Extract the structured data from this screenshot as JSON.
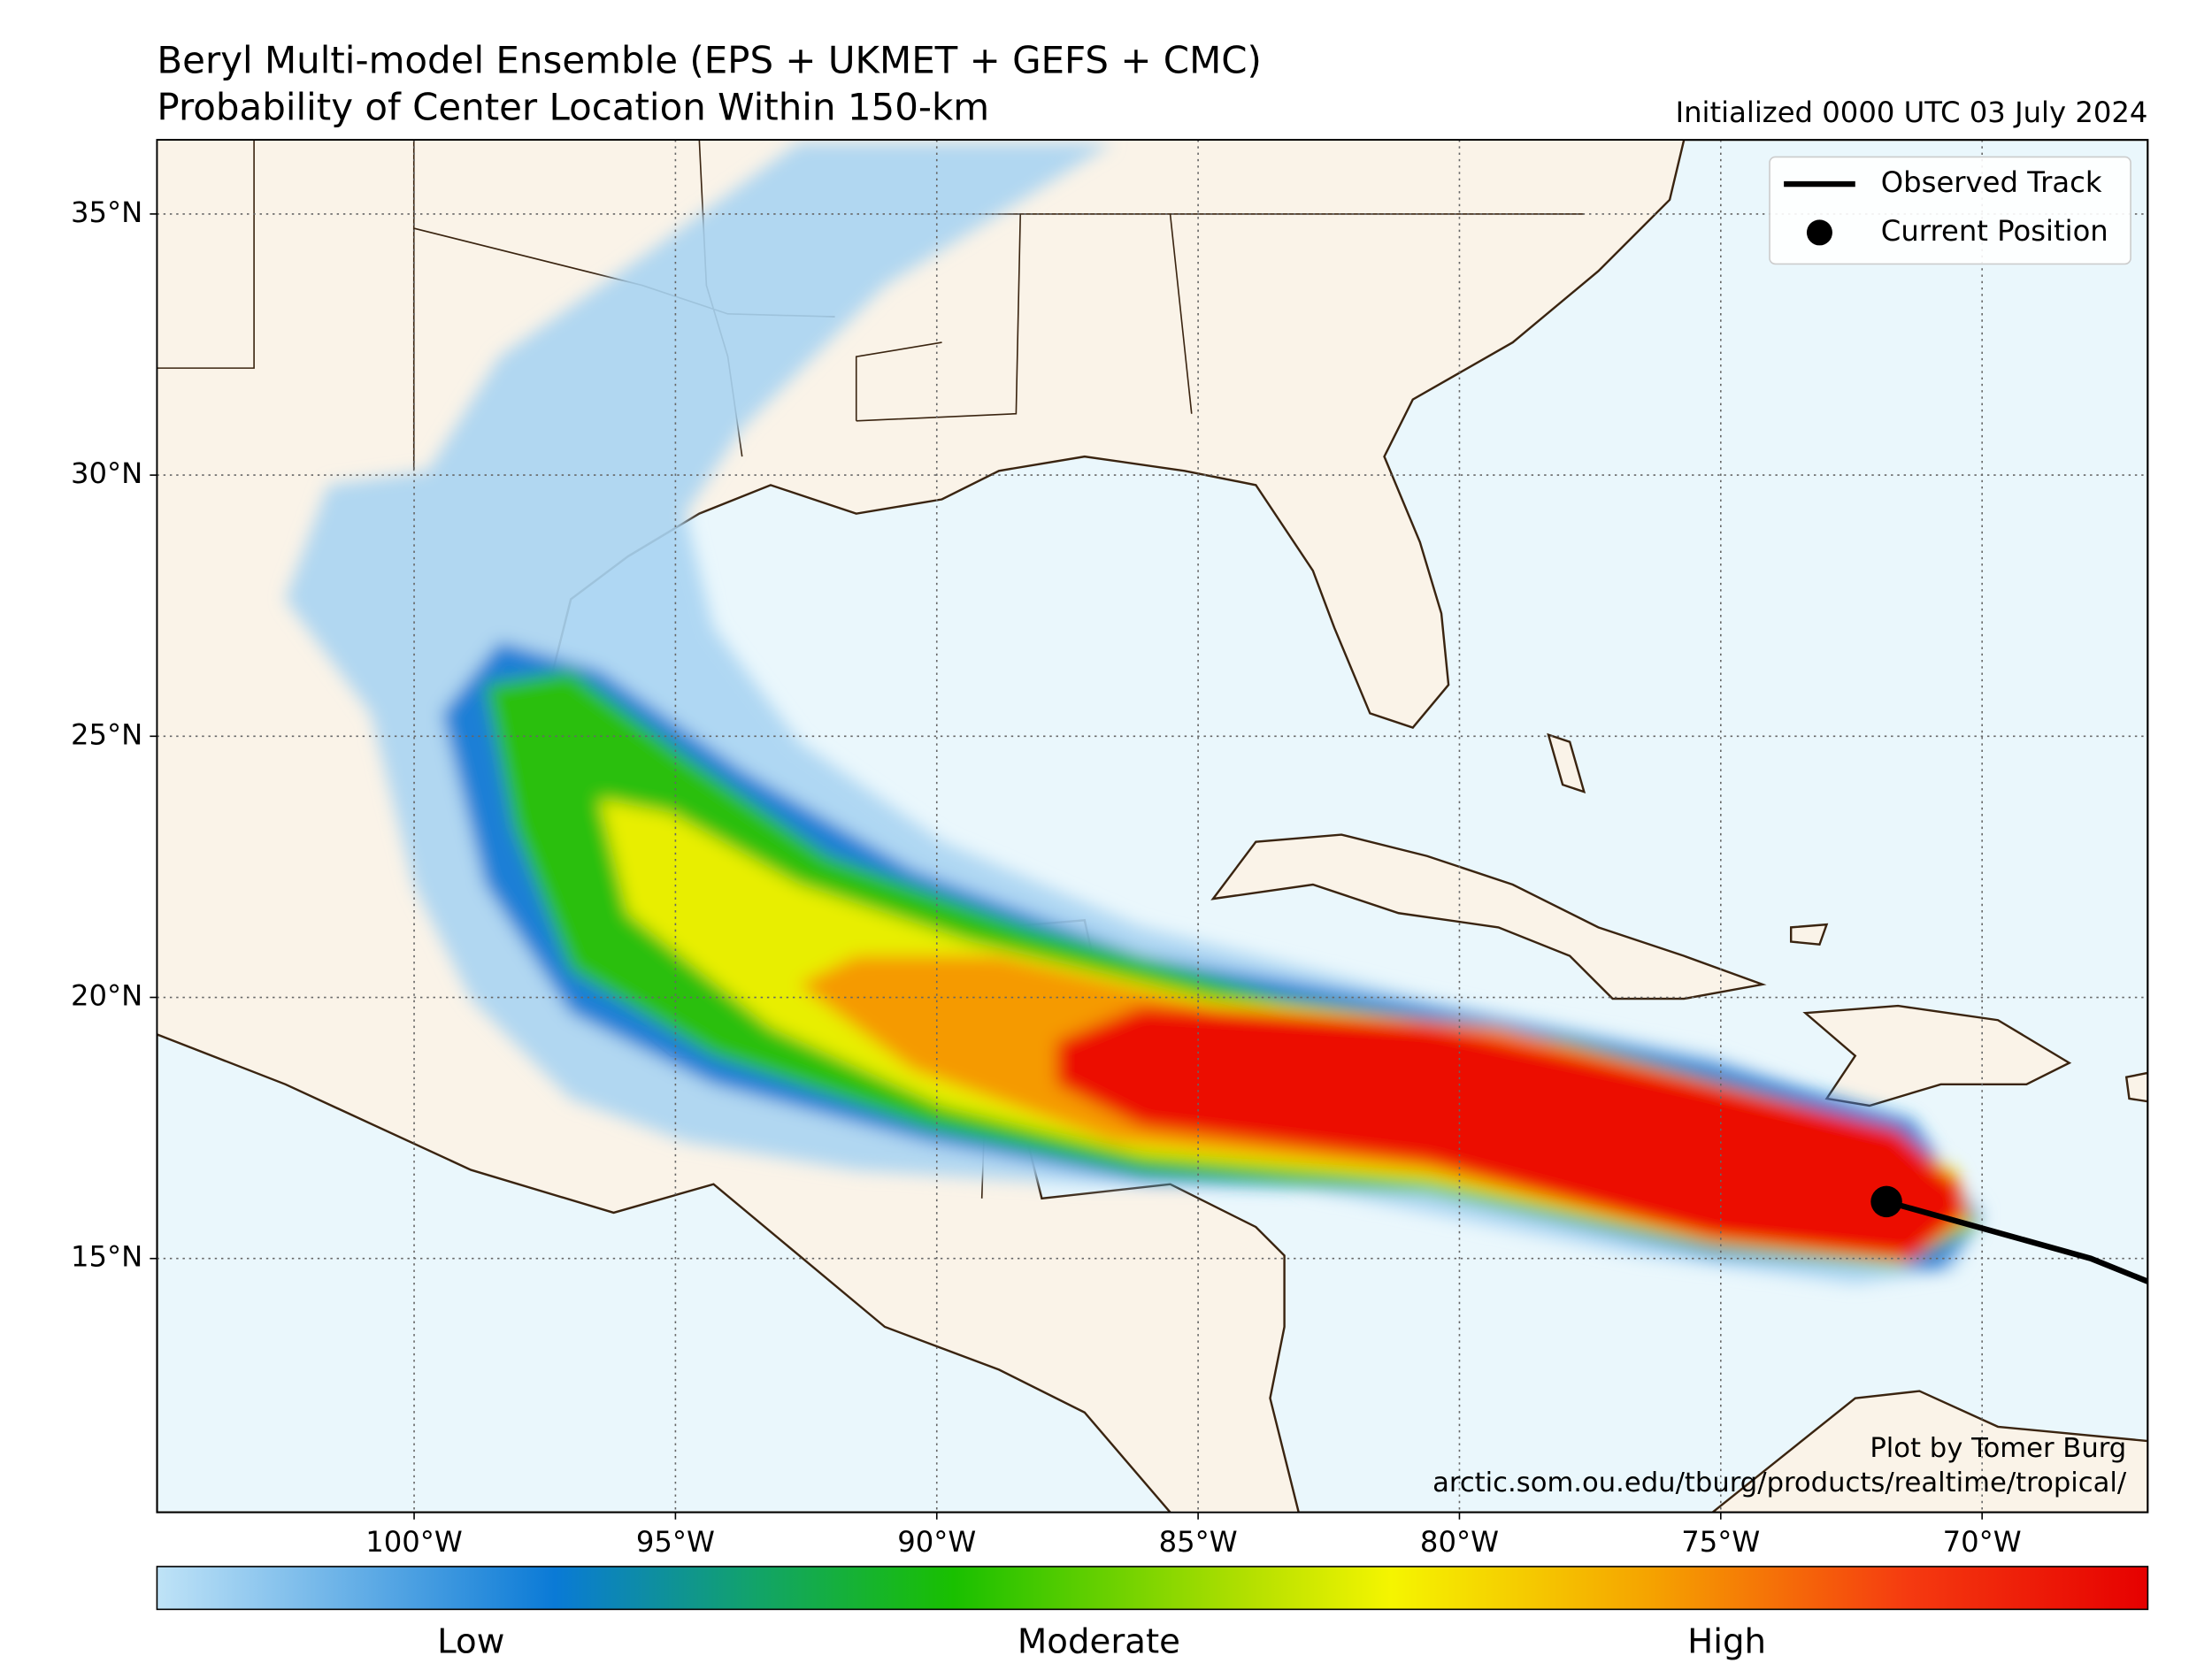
{
  "chart_data": {
    "type": "map",
    "title": "Beryl Multi-model Ensemble (EPS + UKMET + GEFS + CMC)",
    "subtitle": "Probability of Center Location Within 150-km",
    "annotations": [
      "Initialized 0000 UTC 03 July 2024",
      "Plot by Tomer Burg",
      "arctic.som.ou.edu/tburg/products/realtime/tropical/"
    ],
    "xlim": [
      -104.92,
      -66.83
    ],
    "ylim": [
      10.14,
      36.42
    ],
    "xticks": [
      {
        "value": -100,
        "label": "100°W"
      },
      {
        "value": -95,
        "label": "95°W"
      },
      {
        "value": -90,
        "label": "90°W"
      },
      {
        "value": -85,
        "label": "85°W"
      },
      {
        "value": -80,
        "label": "80°W"
      },
      {
        "value": -75,
        "label": "75°W"
      },
      {
        "value": -70,
        "label": "70°W"
      }
    ],
    "yticks": [
      {
        "value": 15,
        "label": "15°N"
      },
      {
        "value": 20,
        "label": "20°N"
      },
      {
        "value": 25,
        "label": "25°N"
      },
      {
        "value": 30,
        "label": "30°N"
      },
      {
        "value": 35,
        "label": "35°N"
      }
    ],
    "grid": true,
    "series": [
      {
        "name": "Observed Track",
        "color": "#000000",
        "x": [
          -66.83,
          -67.92,
          -71.83
        ],
        "y": [
          14.56,
          15.0,
          16.09
        ]
      },
      {
        "name": "Current Position",
        "color": "#000000",
        "x": [
          -71.83
        ],
        "y": [
          16.09
        ]
      }
    ],
    "colorbar": {
      "labels": [
        "Low",
        "Moderate",
        "High"
      ]
    }
  }
}
